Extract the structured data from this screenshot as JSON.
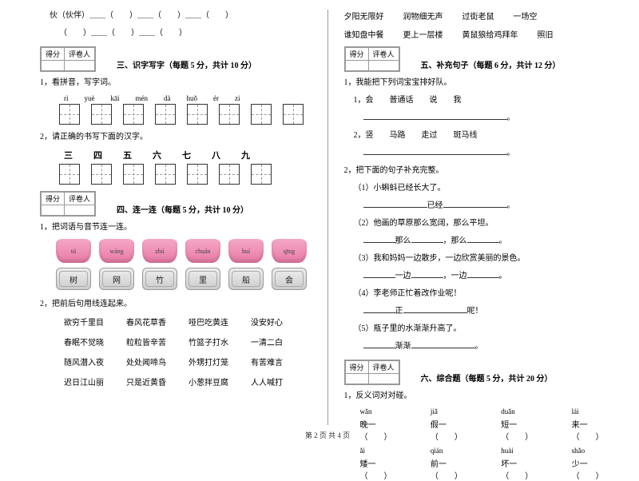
{
  "colors": {
    "text": "#000000",
    "bg": "#ffffff",
    "border": "#999999",
    "pillow_top": "#f5a8c6",
    "pillow_bottom": "#e87aa5",
    "cushion_top": "#eeeeee",
    "cushion_bottom": "#cccccc"
  },
  "left": {
    "top_line1": "伙（伙伴）＿＿（　　）＿＿（　　）＿＿（　　）",
    "top_line2": "（　　）＿＿（　　）＿＿（　　）",
    "score_labels": {
      "score": "得分",
      "reviewer": "评卷人"
    },
    "section3": {
      "title": "三、识字写字（每题 5 分，共计 10 分）",
      "q1": "1，看拼音，写字词。",
      "pinyin": [
        "rì",
        "yuè",
        "kāi",
        "mén",
        "dà",
        "huǒ",
        "ér",
        "zi"
      ],
      "q2": "2，请正确的书写下面的汉字。",
      "chars": [
        "三",
        "四",
        "五",
        "六",
        "七",
        "八",
        "九"
      ]
    },
    "section4": {
      "title": "四、连一连（每题 5 分，共计 10 分）",
      "q1": "1，把词语与音节连一连。",
      "pillows": [
        "tú",
        "wáng",
        "zhú",
        "chuán",
        "huí",
        "qīng"
      ],
      "cushions": [
        "树",
        "网",
        "竹",
        "里",
        "船",
        "会"
      ],
      "q2": "2，把前后句用线连起来。",
      "pairs": [
        [
          "欲穷千里目",
          "春风花草香",
          "哑巴吃黄连",
          "没安好心"
        ],
        [
          "春眠不觉晓",
          "粒粒皆辛苦",
          "竹篮子打水",
          "一清二白"
        ],
        [
          "随风潜入夜",
          "处处闻啼鸟",
          "外甥打灯笼",
          "有苦难言"
        ],
        [
          "迟日江山丽",
          "只是近黄昏",
          "小葱拌豆腐",
          "人人喊打"
        ]
      ]
    }
  },
  "right": {
    "idioms_row1": [
      "夕阳无限好",
      "润物细无声",
      "过街老鼠",
      "一场空"
    ],
    "idioms_row2": [
      "谁知盘中餐",
      "更上一层楼",
      "黄鼠狼给鸡拜年",
      "照旧"
    ],
    "section5": {
      "title": "五、补充句子（每题 6 分，共计 12 分）",
      "q1": "1，我能把下列词宝宝排好队。",
      "q1_1_label": "1，会　　普通话　　说　　我",
      "q1_2_label": "2，竖　　马路　　走过　　斑马线",
      "q2": "2，把下面的句子补充完整。",
      "items": [
        {
          "pre": "（1）小蝌蚪已经长大了。",
          "line": "已经"
        },
        {
          "pre": "（2）他画的草原那么宽阔，那么平坦。",
          "line_a": "那么",
          "line_b": "，那么"
        },
        {
          "pre": "（3）我和妈妈一边散步，一边欣赏美丽的景色。",
          "line_a": "一边",
          "line_b": "，一边"
        },
        {
          "pre": "（4）李老师正忙着改作业呢！",
          "line": "正",
          "tail": "呢！"
        },
        {
          "pre": "（5）瓶子里的水渐渐升高了。",
          "line": "渐渐"
        }
      ]
    },
    "section6": {
      "title": "六、综合题（每题 5 分，共计 20 分）",
      "q1": "1，反义词对对碰。",
      "row1": [
        {
          "py": "wǎn",
          "ch": "晚一（　　）"
        },
        {
          "py": "jiǎ",
          "ch": "假一（　　）"
        },
        {
          "py": "duǎn",
          "ch": "短一（　　）"
        },
        {
          "py": "lái",
          "ch": "来一（　　）"
        }
      ],
      "row2": [
        {
          "py": "ǎi",
          "ch": "矮一（　　）"
        },
        {
          "py": "qián",
          "ch": "前一（　　）"
        },
        {
          "py": "huài",
          "ch": "坏一（　　）"
        },
        {
          "py": "shǎo",
          "ch": "少一（　　）"
        }
      ]
    }
  },
  "footer": "第 2 页  共 4 页"
}
